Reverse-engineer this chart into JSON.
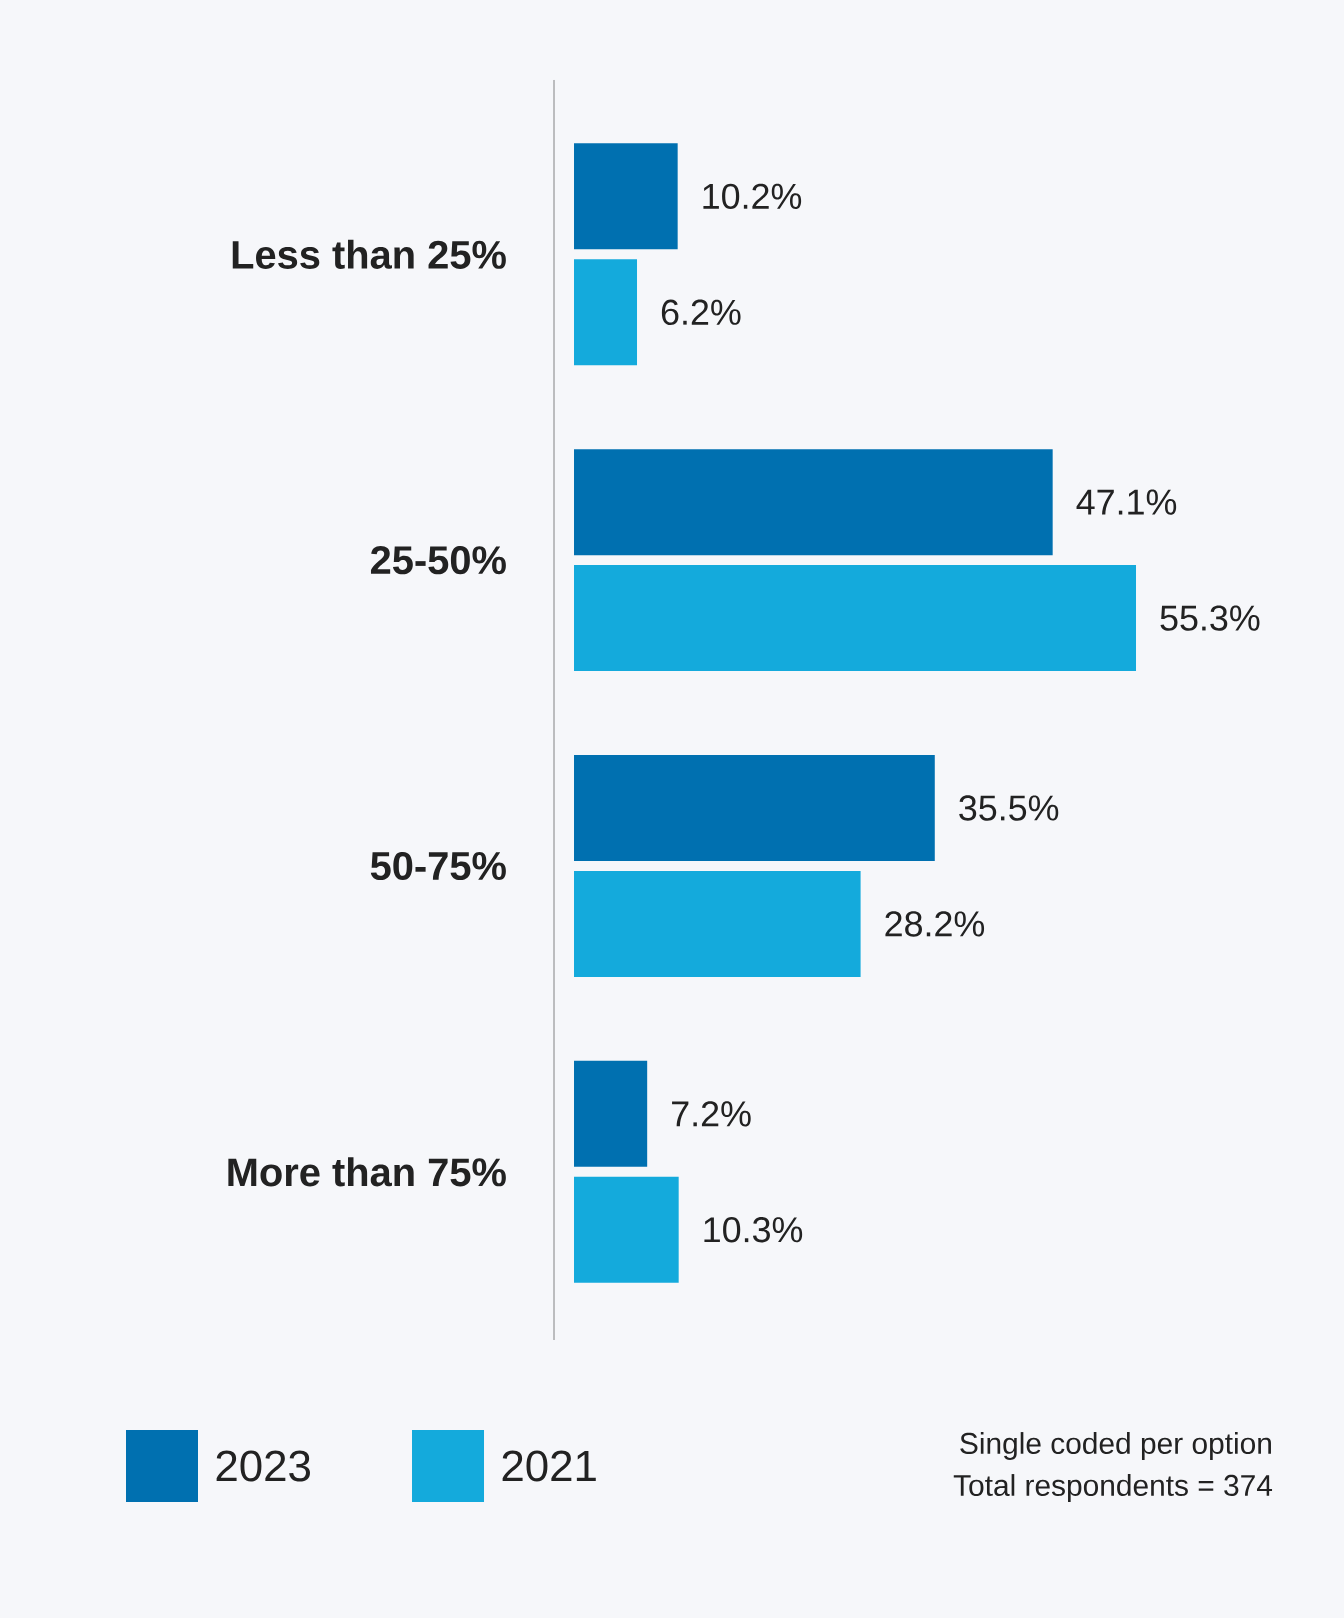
{
  "chart_data": {
    "type": "bar",
    "orientation": "horizontal",
    "categories": [
      "Less than 25%",
      "25-50%",
      "50-75%",
      "More than 75%"
    ],
    "series": [
      {
        "name": "2023",
        "color": "#0070b0",
        "values": [
          10.2,
          47.1,
          35.5,
          7.2
        ],
        "value_labels": [
          "10.2%",
          "47.1%",
          "35.5%",
          "7.2%"
        ]
      },
      {
        "name": "2021",
        "color": "#14aadc",
        "values": [
          6.2,
          55.3,
          28.2,
          10.3
        ],
        "value_labels": [
          "6.2%",
          "55.3%",
          "28.2%",
          "10.3%"
        ]
      }
    ],
    "legend": "bottom left",
    "annotations": [
      "Single coded per option",
      "Total respondents = 374"
    ]
  }
}
